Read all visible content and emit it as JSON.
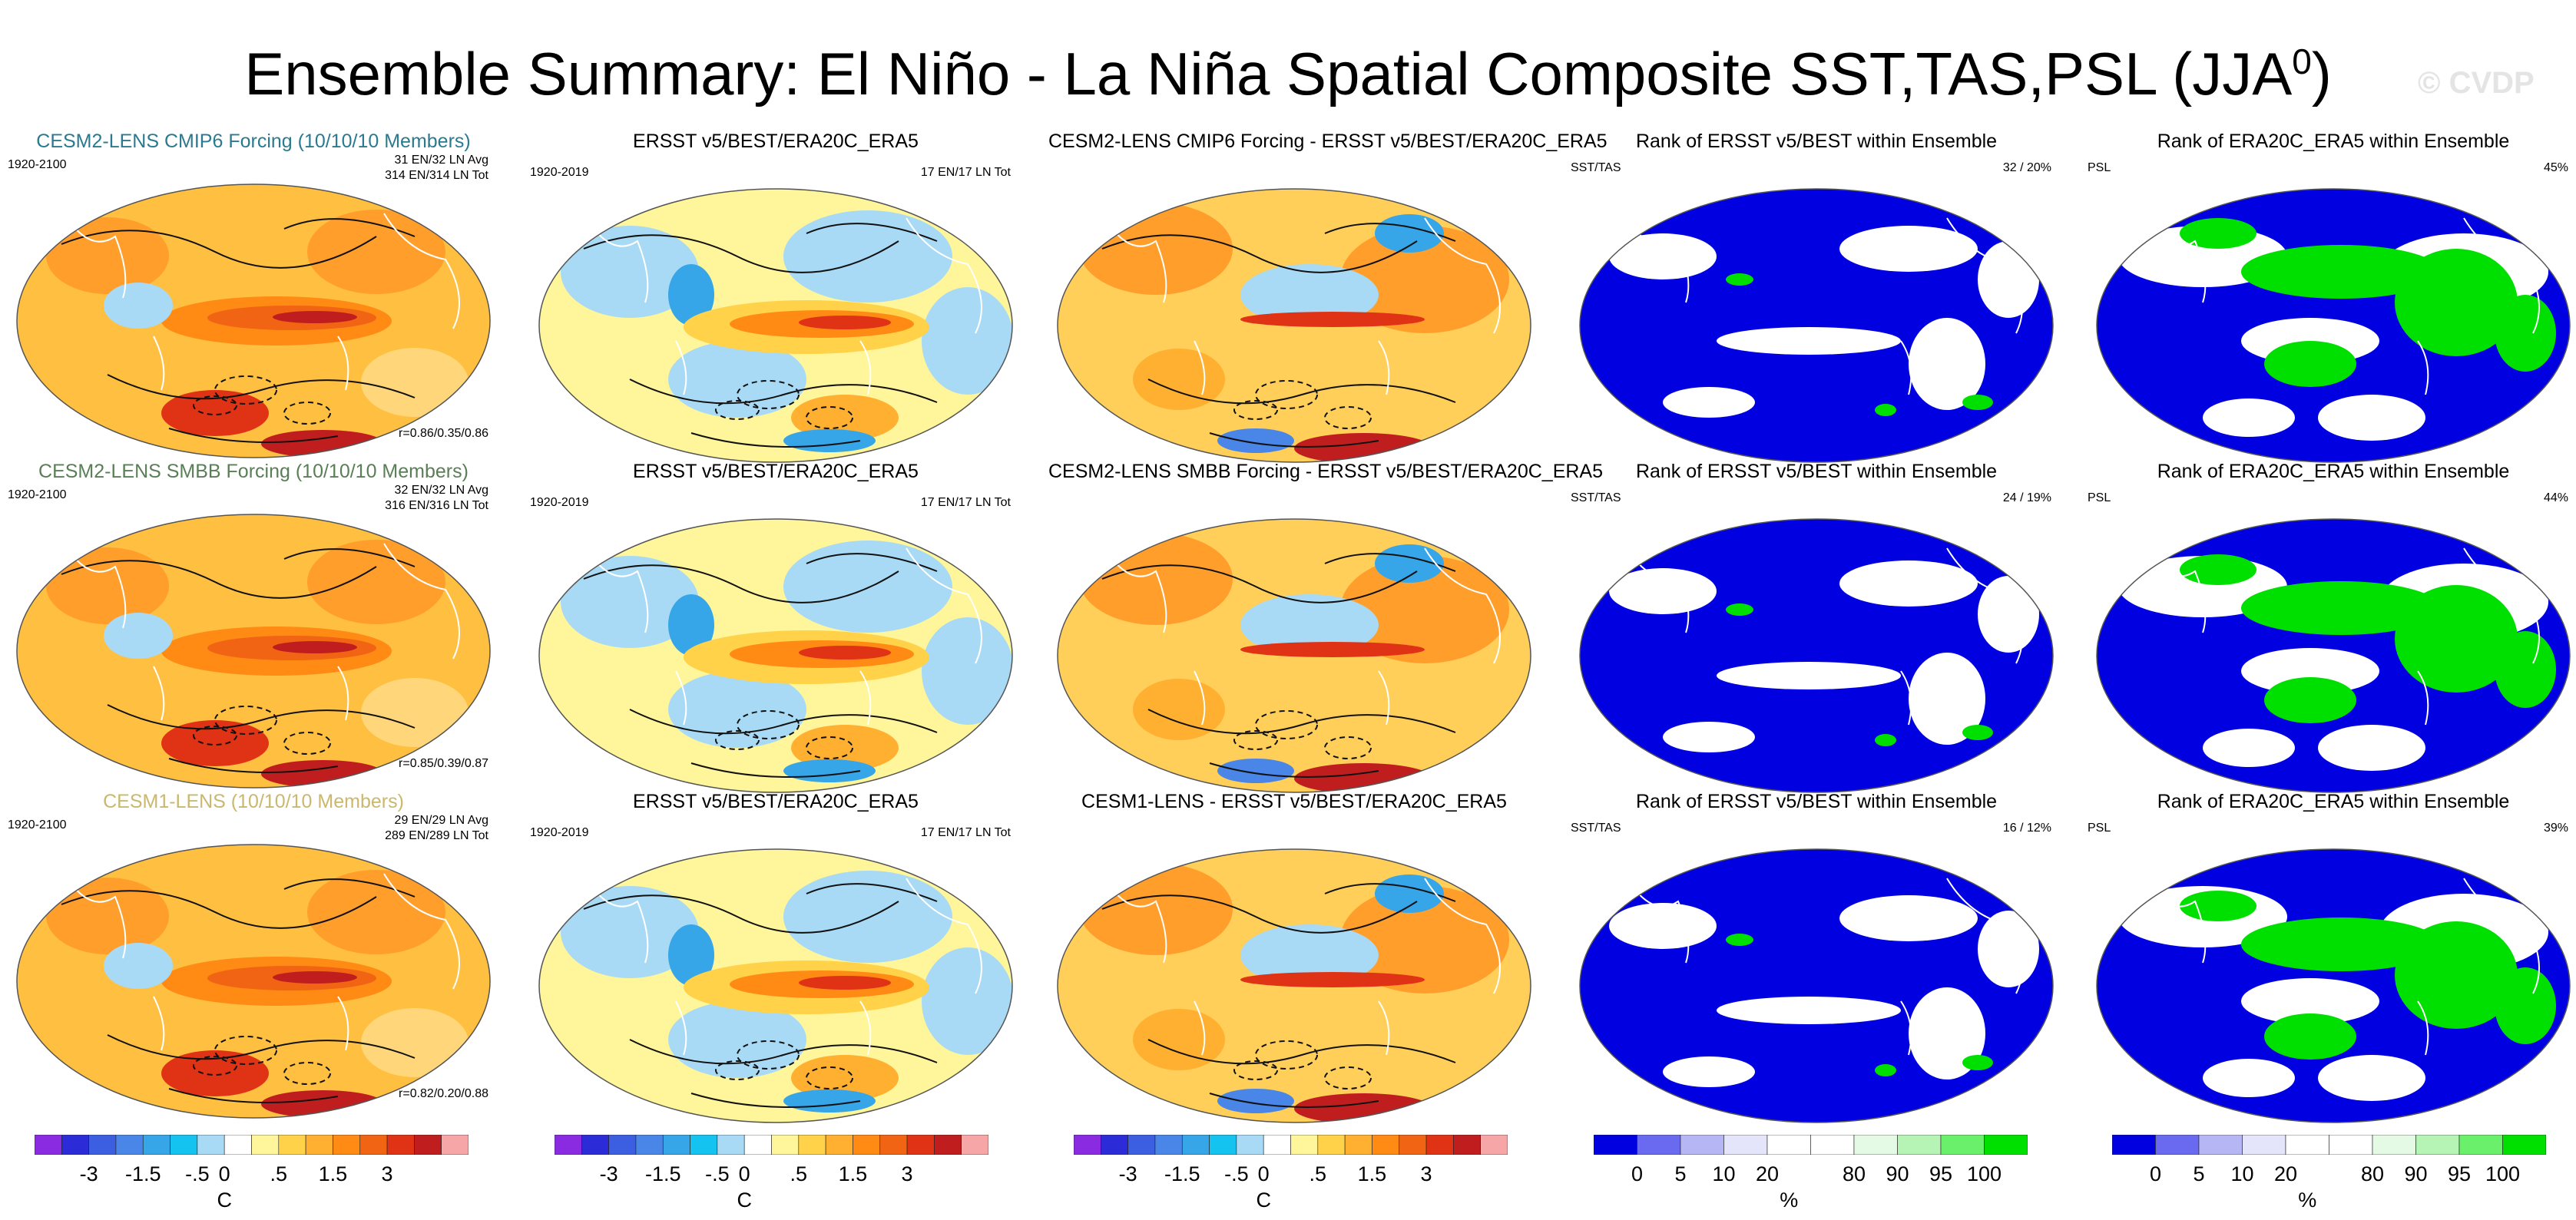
{
  "page": {
    "title": "Ensemble Summary: El Niño - La Niña Spatial Composite SST,TAS,PSL (JJA",
    "title_sup": "0",
    "title_close": ")",
    "watermark": "© CVDP"
  },
  "rows": [
    {
      "col1": {
        "title": "CESM2-LENS CMIP6 Forcing (10/10/10 Members)",
        "color_class": "c1",
        "years": "1920-2100",
        "stats1": "31 EN/32 LN Avg",
        "stats2": "314 EN/314 LN Tot",
        "corr": "r=0.86/0.35/0.86"
      },
      "col2": {
        "title": "ERSST v5/BEST/ERA20C_ERA5",
        "years": "1920-2019",
        "stats": "17 EN/17 LN Tot"
      },
      "col3": {
        "title": "CESM2-LENS CMIP6 Forcing - ERSST v5/BEST/ERA20C_ERA5"
      },
      "col4": {
        "title": "Rank of ERSST v5/BEST within Ensemble",
        "var": "SST/TAS",
        "pct": "32 /  20%"
      },
      "col5": {
        "title": "Rank of ERA20C_ERA5 within Ensemble",
        "var": "PSL",
        "pct": "45%"
      }
    },
    {
      "col1": {
        "title": "CESM2-LENS SMBB Forcing (10/10/10 Members)",
        "color_class": "c2",
        "years": "1920-2100",
        "stats1": "32 EN/32 LN Avg",
        "stats2": "316 EN/316 LN Tot",
        "corr": "r=0.85/0.39/0.87"
      },
      "col2": {
        "title": "ERSST v5/BEST/ERA20C_ERA5",
        "years": "1920-2019",
        "stats": "17 EN/17 LN Tot"
      },
      "col3": {
        "title": "CESM2-LENS SMBB Forcing - ERSST v5/BEST/ERA20C_ERA5"
      },
      "col4": {
        "title": "Rank of ERSST v5/BEST within Ensemble",
        "var": "SST/TAS",
        "pct": "24 /  19%"
      },
      "col5": {
        "title": "Rank of ERA20C_ERA5 within Ensemble",
        "var": "PSL",
        "pct": "44%"
      }
    },
    {
      "col1": {
        "title": "CESM1-LENS (10/10/10 Members)",
        "color_class": "c3",
        "years": "1920-2100",
        "stats1": "29 EN/29 LN Avg",
        "stats2": "289 EN/289 LN Tot",
        "corr": "r=0.82/0.20/0.88"
      },
      "col2": {
        "title": "ERSST v5/BEST/ERA20C_ERA5",
        "years": "1920-2019",
        "stats": "17 EN/17 LN Tot"
      },
      "col3": {
        "title": "CESM1-LENS - ERSST v5/BEST/ERA20C_ERA5"
      },
      "col4": {
        "title": "Rank of ERSST v5/BEST within Ensemble",
        "var": "SST/TAS",
        "pct": "16 /  12%"
      },
      "col5": {
        "title": "Rank of ERA20C_ERA5 within Ensemble",
        "var": "PSL",
        "pct": "39%"
      }
    }
  ],
  "colorbars": {
    "sst": {
      "colors": [
        "#8a2be2",
        "#2b2bd8",
        "#3b5fe0",
        "#4a86e8",
        "#36a6e8",
        "#14c3f0",
        "#a8daf5",
        "#ffffff",
        "#fff59a",
        "#ffd24a",
        "#ffb030",
        "#ff8a14",
        "#f06414",
        "#e03214",
        "#c01e1e",
        "#f6a6a6"
      ],
      "ticks": [
        "-3",
        "-1.5",
        "-.5",
        "0",
        ".5",
        "1.5",
        "3"
      ],
      "unit": "C"
    },
    "rank": {
      "colors": [
        "#0000e0",
        "#6a6af0",
        "#b6b6f4",
        "#e4e4fa",
        "#ffffff",
        "#ffffff",
        "#e4fae4",
        "#b6f4b6",
        "#6af06a",
        "#00e000"
      ],
      "ticks": [
        "0",
        "5",
        "10",
        "20",
        "80",
        "90",
        "95",
        "100"
      ],
      "unit": "%"
    }
  }
}
